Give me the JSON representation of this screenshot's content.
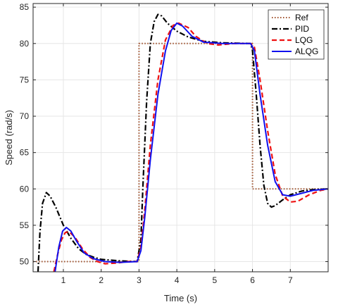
{
  "chart_data": {
    "type": "line",
    "xlabel": "Time (s)",
    "ylabel": "Speed (rad/s)",
    "xlim": [
      0.2,
      8
    ],
    "ylim": [
      48.6,
      85.5
    ],
    "xticks": [
      1,
      2,
      3,
      4,
      5,
      6,
      7
    ],
    "yticks": [
      50,
      55,
      60,
      65,
      70,
      75,
      80,
      85
    ],
    "grid": true,
    "legend_position": "top-right",
    "series": [
      {
        "name": "Ref",
        "color": "#a0522d",
        "dash": "dotted",
        "points": [
          [
            0.2,
            50
          ],
          [
            3,
            50
          ],
          [
            3,
            80
          ],
          [
            6,
            80
          ],
          [
            6,
            60
          ],
          [
            8,
            60
          ]
        ]
      },
      {
        "name": "PID",
        "color": "#000000",
        "dash": "dashdot",
        "points": [
          [
            0.33,
            48.6
          ],
          [
            0.38,
            54
          ],
          [
            0.45,
            58
          ],
          [
            0.55,
            59.5
          ],
          [
            0.65,
            59
          ],
          [
            0.8,
            57.5
          ],
          [
            1.0,
            55
          ],
          [
            1.2,
            53.2
          ],
          [
            1.4,
            51.8
          ],
          [
            1.6,
            51
          ],
          [
            1.8,
            50.6
          ],
          [
            2.0,
            50.3
          ],
          [
            2.5,
            50.1
          ],
          [
            2.95,
            50
          ],
          [
            3.05,
            53
          ],
          [
            3.1,
            60
          ],
          [
            3.2,
            72
          ],
          [
            3.3,
            80
          ],
          [
            3.4,
            83
          ],
          [
            3.5,
            84
          ],
          [
            3.6,
            83.8
          ],
          [
            3.75,
            82.8
          ],
          [
            4.0,
            81.7
          ],
          [
            4.3,
            80.9
          ],
          [
            4.7,
            80.3
          ],
          [
            5.2,
            80.1
          ],
          [
            5.95,
            80
          ],
          [
            6.0,
            79
          ],
          [
            6.1,
            73
          ],
          [
            6.2,
            66
          ],
          [
            6.3,
            60.5
          ],
          [
            6.4,
            58
          ],
          [
            6.5,
            57.5
          ],
          [
            6.6,
            57.7
          ],
          [
            6.8,
            58.5
          ],
          [
            7.0,
            59.2
          ],
          [
            7.3,
            59.7
          ],
          [
            7.6,
            59.9
          ],
          [
            8.0,
            60
          ]
        ]
      },
      {
        "name": "LQG",
        "color": "#ee1111",
        "dash": "dashed",
        "points": [
          [
            0.75,
            48.6
          ],
          [
            0.85,
            51
          ],
          [
            0.95,
            53
          ],
          [
            1.05,
            54
          ],
          [
            1.15,
            54.1
          ],
          [
            1.3,
            53.4
          ],
          [
            1.5,
            51.8
          ],
          [
            1.7,
            50.6
          ],
          [
            1.9,
            50
          ],
          [
            2.1,
            49.7
          ],
          [
            2.4,
            49.8
          ],
          [
            2.7,
            50
          ],
          [
            2.95,
            50
          ],
          [
            3.05,
            52
          ],
          [
            3.15,
            57
          ],
          [
            3.3,
            66
          ],
          [
            3.5,
            75
          ],
          [
            3.7,
            80.5
          ],
          [
            3.9,
            82.5
          ],
          [
            4.05,
            82.8
          ],
          [
            4.3,
            82.2
          ],
          [
            4.5,
            81
          ],
          [
            4.8,
            80
          ],
          [
            5.1,
            79.8
          ],
          [
            5.5,
            80
          ],
          [
            5.95,
            80
          ],
          [
            6.05,
            79.5
          ],
          [
            6.2,
            75
          ],
          [
            6.4,
            68
          ],
          [
            6.6,
            62
          ],
          [
            6.8,
            59
          ],
          [
            7.0,
            58.2
          ],
          [
            7.2,
            58.3
          ],
          [
            7.5,
            59.2
          ],
          [
            7.8,
            59.8
          ],
          [
            8.0,
            60
          ]
        ]
      },
      {
        "name": "ALQG",
        "color": "#1010ee",
        "dash": "solid",
        "points": [
          [
            0.78,
            48.6
          ],
          [
            0.88,
            52
          ],
          [
            0.98,
            54.2
          ],
          [
            1.08,
            54.7
          ],
          [
            1.2,
            54.2
          ],
          [
            1.35,
            52.8
          ],
          [
            1.55,
            51.2
          ],
          [
            1.8,
            50.4
          ],
          [
            2.1,
            50
          ],
          [
            2.5,
            49.9
          ],
          [
            2.95,
            50
          ],
          [
            3.05,
            51.5
          ],
          [
            3.15,
            56
          ],
          [
            3.3,
            64
          ],
          [
            3.5,
            73
          ],
          [
            3.7,
            79
          ],
          [
            3.85,
            81.8
          ],
          [
            4.0,
            82.8
          ],
          [
            4.15,
            82.4
          ],
          [
            4.4,
            81
          ],
          [
            4.7,
            80.2
          ],
          [
            5.2,
            80
          ],
          [
            5.95,
            80
          ],
          [
            6.05,
            79
          ],
          [
            6.2,
            73
          ],
          [
            6.4,
            66
          ],
          [
            6.6,
            61
          ],
          [
            6.8,
            59.2
          ],
          [
            7.0,
            59
          ],
          [
            7.3,
            59.4
          ],
          [
            7.6,
            59.8
          ],
          [
            8.0,
            60
          ]
        ]
      }
    ]
  }
}
